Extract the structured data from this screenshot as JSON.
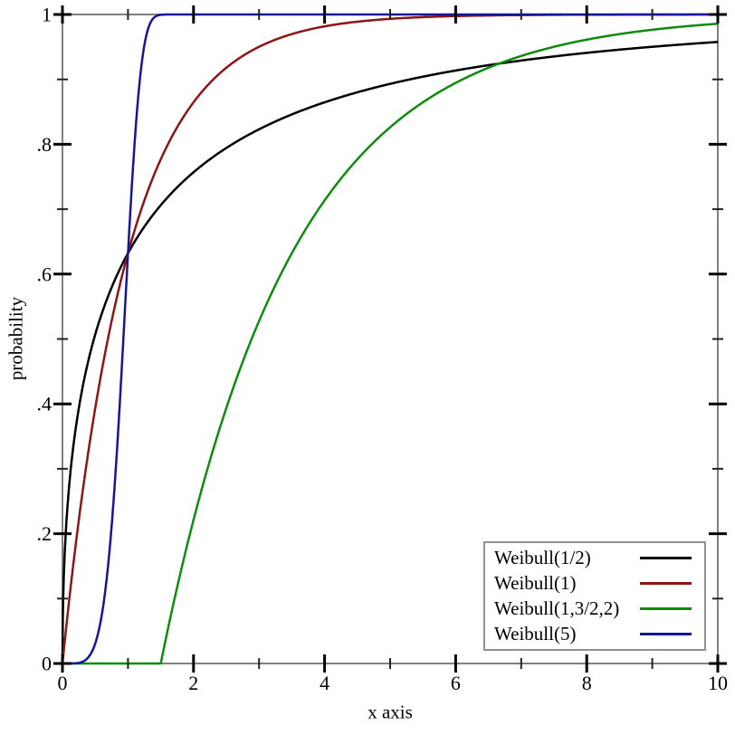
{
  "figure": {
    "background": "#ffffff",
    "axis_color": "#808080",
    "major_tick_color": "#000000",
    "minor_tick_color": "#222222",
    "legend_border_color": "#919191"
  },
  "chart_data": {
    "type": "line",
    "title": "",
    "xlabel": "x axis",
    "ylabel": "probability",
    "xlim": [
      0,
      10
    ],
    "ylim": [
      0,
      1
    ],
    "grid": false,
    "legend_position": "bottom-right-inside",
    "x_major_ticks": [
      0,
      2,
      4,
      6,
      8,
      10
    ],
    "x_tick_labels": [
      "0",
      "2",
      "4",
      "6",
      "8",
      "10"
    ],
    "x_minor_ticks": [
      1,
      3,
      5,
      7,
      9
    ],
    "y_major_ticks": [
      0,
      0.2,
      0.4,
      0.6,
      0.8,
      1
    ],
    "y_tick_labels": [
      "0",
      ".2",
      ".4",
      ".6",
      ".8",
      "1"
    ],
    "y_minor_ticks": [
      0.1,
      0.3,
      0.5,
      0.7,
      0.9
    ],
    "series": [
      {
        "label": "Weibull(1/2)",
        "color": "#000000",
        "curve": "weibull_cdf",
        "shape": 0.5,
        "scale": 1,
        "location": 0,
        "points": [
          [
            0,
            0
          ],
          [
            0.1,
            0.271
          ],
          [
            0.25,
            0.393
          ],
          [
            0.5,
            0.507
          ],
          [
            1,
            0.632
          ],
          [
            1.5,
            0.706
          ],
          [
            2,
            0.757
          ],
          [
            3,
            0.823
          ],
          [
            4,
            0.865
          ],
          [
            5,
            0.893
          ],
          [
            6,
            0.914
          ],
          [
            7,
            0.929
          ],
          [
            8,
            0.941
          ],
          [
            9,
            0.95
          ],
          [
            10,
            0.958
          ]
        ]
      },
      {
        "label": "Weibull(1)",
        "color": "#8e1515",
        "curve": "weibull_cdf",
        "shape": 1,
        "scale": 1,
        "location": 0,
        "points": [
          [
            0,
            0
          ],
          [
            0.25,
            0.221
          ],
          [
            0.5,
            0.393
          ],
          [
            1,
            0.632
          ],
          [
            1.5,
            0.777
          ],
          [
            2,
            0.865
          ],
          [
            2.5,
            0.918
          ],
          [
            3,
            0.95
          ],
          [
            4,
            0.982
          ],
          [
            5,
            0.993
          ],
          [
            6,
            0.998
          ],
          [
            7,
            0.999
          ],
          [
            8,
            0.9997
          ],
          [
            10,
            0.99995
          ]
        ]
      },
      {
        "label": "Weibull(1,3/2,2)",
        "color": "#0e8c0e",
        "curve": "weibull_cdf",
        "shape": 1,
        "scale": 2,
        "location": 1.5,
        "points": [
          [
            0,
            0
          ],
          [
            1.5,
            0
          ],
          [
            2,
            0.221
          ],
          [
            2.5,
            0.393
          ],
          [
            3,
            0.528
          ],
          [
            3.5,
            0.632
          ],
          [
            4,
            0.713
          ],
          [
            4.5,
            0.777
          ],
          [
            5,
            0.826
          ],
          [
            5.5,
            0.865
          ],
          [
            6,
            0.895
          ],
          [
            6.5,
            0.918
          ],
          [
            7,
            0.936
          ],
          [
            7.5,
            0.95
          ],
          [
            8,
            0.961
          ],
          [
            9,
            0.976
          ],
          [
            10,
            0.986
          ]
        ]
      },
      {
        "label": "Weibull(5)",
        "color": "#15159e",
        "curve": "weibull_cdf",
        "shape": 5,
        "scale": 1,
        "location": 0,
        "points": [
          [
            0,
            0
          ],
          [
            0.5,
            0.031
          ],
          [
            0.6,
            0.075
          ],
          [
            0.7,
            0.155
          ],
          [
            0.8,
            0.28
          ],
          [
            0.9,
            0.446
          ],
          [
            1,
            0.632
          ],
          [
            1.1,
            0.8
          ],
          [
            1.2,
            0.917
          ],
          [
            1.3,
            0.976
          ],
          [
            1.4,
            0.995
          ],
          [
            1.5,
            0.9995
          ],
          [
            2,
            1.0
          ],
          [
            10,
            1.0
          ]
        ]
      }
    ]
  }
}
